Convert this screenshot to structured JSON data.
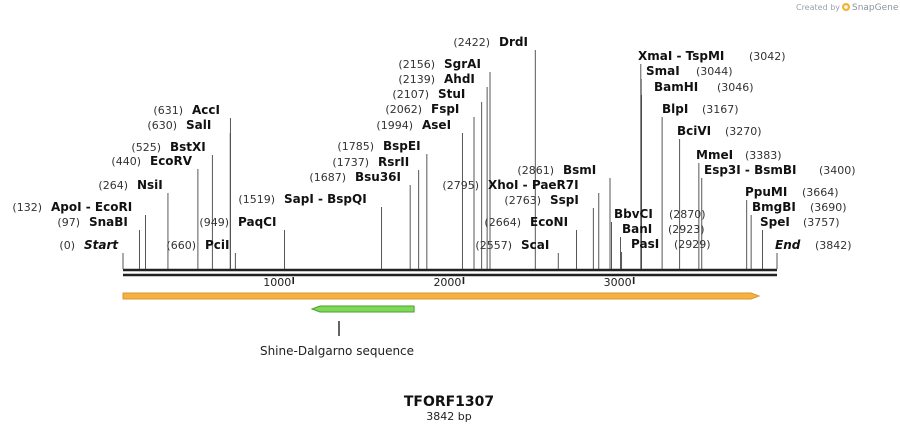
{
  "credit": {
    "created_by": "Created by",
    "brand": "SnapGene"
  },
  "plasmid": {
    "name": "TFORF1307",
    "length_label": "3842 bp",
    "length": 3842
  },
  "ruler": {
    "ticks": [
      {
        "value": 1000,
        "label": "1000"
      },
      {
        "value": 2000,
        "label": "2000"
      },
      {
        "value": 3000,
        "label": "3000"
      }
    ]
  },
  "features": [
    {
      "name": "orange-feature",
      "start": 0,
      "end": 3842,
      "direction": "forward",
      "fill": "#f7b23b",
      "label": ""
    },
    {
      "name": "shine-dalgarno-feature",
      "start": 1110,
      "end": 1710,
      "direction": "reverse",
      "fill": "#7ed957",
      "label": "Shine-Dalgarno sequence"
    }
  ],
  "colors": {
    "backbone": "#222222",
    "tick_line": "#444444",
    "label": "#111111",
    "position": "#333333"
  },
  "sites": [
    {
      "name": "Start",
      "pos": 0,
      "label": "(0)",
      "italic": true
    },
    {
      "name": "SnaBI",
      "pos": 97,
      "label": "(97)"
    },
    {
      "name": "ApoI - EcoRI",
      "pos": 132,
      "label": "(132)"
    },
    {
      "name": "NsiI",
      "pos": 264,
      "label": "(264)"
    },
    {
      "name": "EcoRV",
      "pos": 440,
      "label": "(440)"
    },
    {
      "name": "BstXI",
      "pos": 525,
      "label": "(525)"
    },
    {
      "name": "SalI",
      "pos": 630,
      "label": "(630)"
    },
    {
      "name": "AccI",
      "pos": 631,
      "label": "(631)"
    },
    {
      "name": "PciI",
      "pos": 660,
      "label": "(660)"
    },
    {
      "name": "PaqCI",
      "pos": 949,
      "label": "(949)"
    },
    {
      "name": "SapI - BspQI",
      "pos": 1519,
      "label": "(1519)"
    },
    {
      "name": "Bsu36I",
      "pos": 1687,
      "label": "(1687)"
    },
    {
      "name": "RsrII",
      "pos": 1737,
      "label": "(1737)"
    },
    {
      "name": "BspEI",
      "pos": 1785,
      "label": "(1785)"
    },
    {
      "name": "AseI",
      "pos": 1994,
      "label": "(1994)"
    },
    {
      "name": "FspI",
      "pos": 2062,
      "label": "(2062)"
    },
    {
      "name": "StuI",
      "pos": 2107,
      "label": "(2107)"
    },
    {
      "name": "AhdI",
      "pos": 2139,
      "label": "(2139)"
    },
    {
      "name": "SgrAI",
      "pos": 2156,
      "label": "(2156)"
    },
    {
      "name": "DrdI",
      "pos": 2422,
      "label": "(2422)"
    },
    {
      "name": "ScaI",
      "pos": 2557,
      "label": "(2557)"
    },
    {
      "name": "EcoNI",
      "pos": 2664,
      "label": "(2664)"
    },
    {
      "name": "SspI",
      "pos": 2763,
      "label": "(2763)"
    },
    {
      "name": "XhoI - PaeR7I",
      "pos": 2795,
      "label": "(2795)"
    },
    {
      "name": "BsmI",
      "pos": 2861,
      "label": "(2861)"
    },
    {
      "name": "BbvCI",
      "pos": 2870,
      "label": "(2870)"
    },
    {
      "name": "BanI",
      "pos": 2923,
      "label": "(2923)"
    },
    {
      "name": "PasI",
      "pos": 2929,
      "label": "(2929)"
    },
    {
      "name": "XmaI - TspMI",
      "pos": 3042,
      "label": "(3042)"
    },
    {
      "name": "SmaI",
      "pos": 3044,
      "label": "(3044)"
    },
    {
      "name": "BamHI",
      "pos": 3046,
      "label": "(3046)"
    },
    {
      "name": "BlpI",
      "pos": 3167,
      "label": "(3167)"
    },
    {
      "name": "BciVI",
      "pos": 3270,
      "label": "(3270)"
    },
    {
      "name": "MmeI",
      "pos": 3383,
      "label": "(3383)"
    },
    {
      "name": "Esp3I - BsmBI",
      "pos": 3400,
      "label": "(3400)"
    },
    {
      "name": "PpuMI",
      "pos": 3664,
      "label": "(3664)"
    },
    {
      "name": "BmgBI",
      "pos": 3690,
      "label": "(3690)"
    },
    {
      "name": "SpeI",
      "pos": 3757,
      "label": "(3757)"
    },
    {
      "name": "End",
      "pos": 3842,
      "label": "(3842)",
      "italic": true
    }
  ]
}
